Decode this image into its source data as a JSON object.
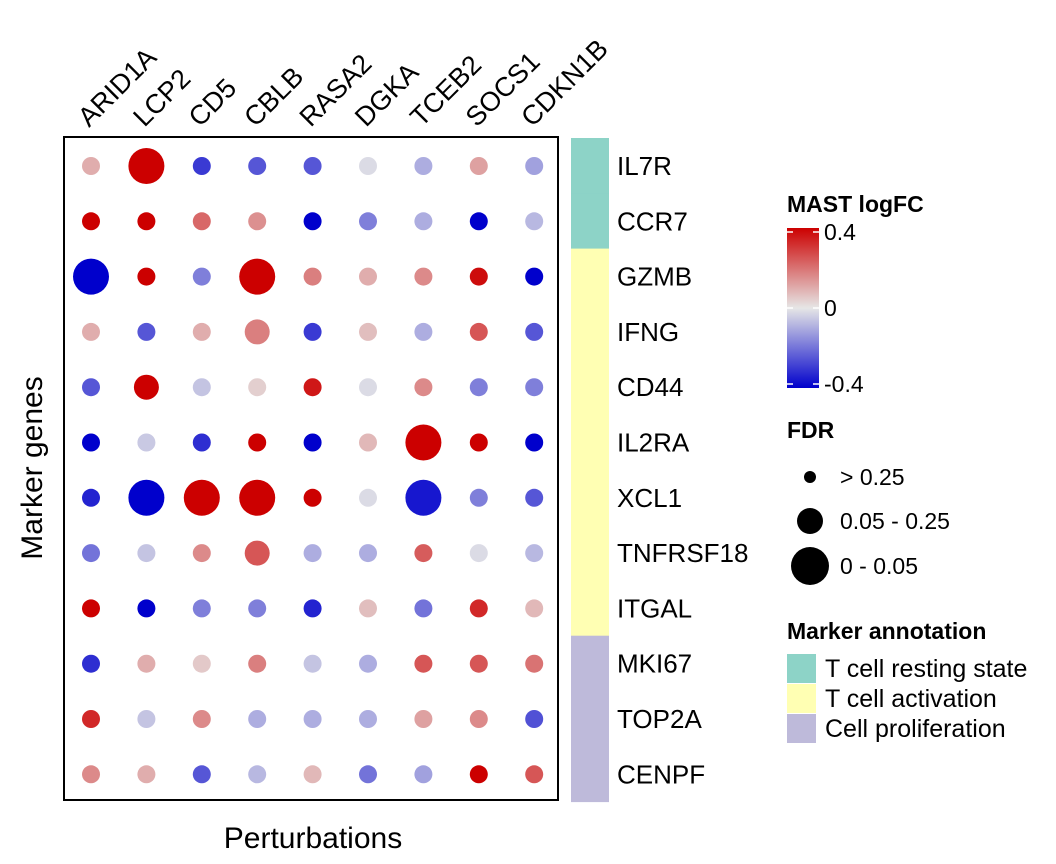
{
  "chart_data": {
    "type": "scatter",
    "subtype": "dot-heatmap",
    "xlabel": "Perturbations",
    "ylabel": "Marker genes",
    "columns": [
      "ARID1A",
      "LCP2",
      "CD5",
      "CBLB",
      "RASA2",
      "DGKA",
      "TCEB2",
      "SOCS1",
      "CDKN1B"
    ],
    "rows": [
      "IL7R",
      "CCR7",
      "GZMB",
      "IFNG",
      "CD44",
      "IL2RA",
      "XCL1",
      "TNFRSF18",
      "ITGAL",
      "MKI67",
      "TOP2A",
      "CENPF"
    ],
    "logfc": [
      [
        0.1,
        0.4,
        -0.3,
        -0.25,
        -0.25,
        -0.02,
        -0.1,
        0.12,
        -0.12
      ],
      [
        0.4,
        0.4,
        0.22,
        0.15,
        -0.4,
        -0.18,
        -0.1,
        -0.4,
        -0.08
      ],
      [
        -0.4,
        0.4,
        -0.18,
        0.4,
        0.18,
        0.1,
        0.16,
        0.38,
        -0.4
      ],
      [
        0.1,
        -0.25,
        0.1,
        0.18,
        -0.3,
        0.07,
        -0.1,
        0.25,
        -0.25
      ],
      [
        -0.25,
        0.4,
        -0.06,
        0.04,
        0.36,
        -0.02,
        0.16,
        -0.18,
        -0.18
      ],
      [
        -0.4,
        -0.05,
        -0.32,
        0.4,
        -0.4,
        0.08,
        0.4,
        0.4,
        -0.4
      ],
      [
        -0.34,
        -0.4,
        0.4,
        0.4,
        0.4,
        -0.02,
        -0.36,
        -0.18,
        -0.25
      ],
      [
        -0.2,
        -0.06,
        0.16,
        0.25,
        -0.1,
        -0.1,
        0.24,
        -0.02,
        -0.08
      ],
      [
        0.4,
        -0.4,
        -0.18,
        -0.18,
        -0.34,
        0.07,
        -0.2,
        0.33,
        0.08
      ],
      [
        -0.32,
        0.1,
        0.05,
        0.18,
        -0.06,
        -0.1,
        0.25,
        0.25,
        0.2
      ],
      [
        0.33,
        -0.06,
        0.16,
        -0.1,
        -0.1,
        -0.1,
        0.12,
        0.16,
        -0.26
      ],
      [
        0.16,
        0.1,
        -0.25,
        -0.08,
        0.08,
        -0.2,
        -0.12,
        0.4,
        0.25
      ]
    ],
    "fdr_category": [
      [
        0,
        2,
        0,
        0,
        0,
        0,
        0,
        0,
        0
      ],
      [
        0,
        0,
        0,
        0,
        0,
        0,
        0,
        0,
        0
      ],
      [
        2,
        0,
        0,
        2,
        0,
        0,
        0,
        0,
        0
      ],
      [
        0,
        0,
        0,
        1,
        0,
        0,
        0,
        0,
        0
      ],
      [
        0,
        1,
        0,
        0,
        0,
        0,
        0,
        0,
        0
      ],
      [
        0,
        0,
        0,
        0,
        0,
        0,
        2,
        0,
        0
      ],
      [
        0,
        2,
        2,
        2,
        0,
        0,
        2,
        0,
        0
      ],
      [
        0,
        0,
        0,
        1,
        0,
        0,
        0,
        0,
        0
      ],
      [
        0,
        0,
        0,
        0,
        0,
        0,
        0,
        0,
        0
      ],
      [
        0,
        0,
        0,
        0,
        0,
        0,
        0,
        0,
        0
      ],
      [
        0,
        0,
        0,
        0,
        0,
        0,
        0,
        0,
        0
      ],
      [
        0,
        0,
        0,
        0,
        0,
        0,
        0,
        0,
        0
      ]
    ],
    "row_annotation": [
      "T cell resting state",
      "T cell resting state",
      "T cell activation",
      "T cell activation",
      "T cell activation",
      "T cell activation",
      "T cell activation",
      "T cell activation",
      "T cell activation",
      "Cell proliferation",
      "Cell proliferation",
      "Cell proliferation"
    ],
    "color_scale": {
      "title": "MAST logFC",
      "range": [
        -0.4,
        0.4
      ],
      "ticks": [
        "0.4",
        "0",
        "-0.4"
      ],
      "low_color": "#0000CC",
      "mid_color": "#E6E6E6",
      "high_color": "#CC0000"
    },
    "size_legend": {
      "title": "FDR",
      "categories": [
        "> 0.25",
        "0.05 - 0.25",
        "0 - 0.05"
      ]
    },
    "annotation_legend": {
      "title": "Marker annotation",
      "items": [
        {
          "label": "T cell resting state",
          "color": "#8DD3C7"
        },
        {
          "label": "T cell activation",
          "color": "#FFFFB3"
        },
        {
          "label": "Cell proliferation",
          "color": "#BEBADA"
        }
      ]
    }
  }
}
